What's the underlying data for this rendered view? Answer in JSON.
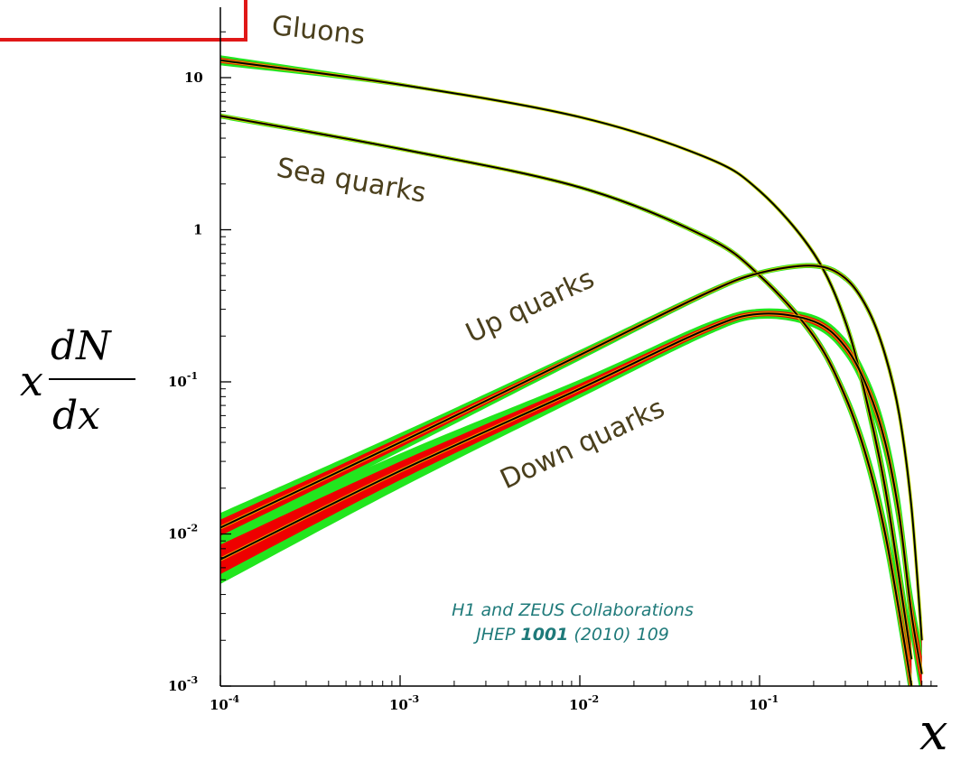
{
  "colors": {
    "outer_band": "#22e61e",
    "inner_band": "#ee0000",
    "central": "#000000",
    "highlight": "#f0e000",
    "label": "#4a3f1c",
    "citation": "#1f7a7a",
    "frame": "#e01818"
  },
  "axes": {
    "ylabel_x": "x",
    "ylabel_num": "dN",
    "ylabel_den": "dx",
    "xlabel": "x",
    "x_ticks": [
      {
        "value": 0.0001,
        "base": "10",
        "exp": "-4"
      },
      {
        "value": 0.001,
        "base": "10",
        "exp": "-3"
      },
      {
        "value": 0.01,
        "base": "10",
        "exp": "-2"
      },
      {
        "value": 0.1,
        "base": "10",
        "exp": "-1"
      }
    ],
    "y_ticks": [
      {
        "value": 0.001,
        "base": "10",
        "exp": "-3"
      },
      {
        "value": 0.01,
        "base": "10",
        "exp": "-2"
      },
      {
        "value": 0.1,
        "base": "10",
        "exp": "-1"
      },
      {
        "value": 1,
        "base": "1",
        "exp": ""
      },
      {
        "value": 10,
        "base": "10",
        "exp": ""
      }
    ]
  },
  "citation": {
    "line1": "H1 and ZEUS Collaborations",
    "line2_prefix": "JHEP ",
    "line2_bold": "1001",
    "line2_suffix": " (2010) 109"
  },
  "chart_data": {
    "type": "line",
    "x_scale": "log",
    "y_scale": "log",
    "xlim": [
      0.0001,
      1
    ],
    "ylim": [
      0.001,
      30
    ],
    "grid": false,
    "series": [
      {
        "name": "Gluons",
        "x": [
          0.0001,
          0.001,
          0.01,
          0.05,
          0.1,
          0.2,
          0.3,
          0.4,
          0.5,
          0.6,
          0.7
        ],
        "y": [
          13,
          9,
          5.5,
          3,
          1.8,
          0.7,
          0.25,
          0.07,
          0.02,
          0.005,
          0.0015
        ],
        "band_outer": [
          0.08,
          0.03,
          0.02,
          0.02,
          0.03,
          0.05,
          0.1,
          0.2,
          0.3,
          0.4,
          0.45
        ],
        "band_inner": [
          0.04,
          0.015,
          0.01,
          0.01,
          0.015,
          0.03,
          0.05,
          0.1,
          0.15,
          0.2,
          0.25
        ]
      },
      {
        "name": "Sea quarks",
        "x": [
          0.0001,
          0.001,
          0.01,
          0.05,
          0.1,
          0.2,
          0.3,
          0.4,
          0.5,
          0.6,
          0.7
        ],
        "y": [
          5.6,
          3.4,
          1.9,
          0.9,
          0.5,
          0.2,
          0.08,
          0.03,
          0.01,
          0.003,
          0.001
        ],
        "band_outer": [
          0.04,
          0.03,
          0.03,
          0.04,
          0.05,
          0.08,
          0.12,
          0.2,
          0.3,
          0.35,
          0.4
        ],
        "band_inner": [
          0.02,
          0.015,
          0.015,
          0.02,
          0.03,
          0.05,
          0.07,
          0.1,
          0.15,
          0.2,
          0.25
        ]
      },
      {
        "name": "Up quarks",
        "x": [
          0.0001,
          0.001,
          0.01,
          0.05,
          0.1,
          0.2,
          0.3,
          0.4,
          0.5,
          0.6,
          0.7,
          0.8
        ],
        "y": [
          0.011,
          0.04,
          0.15,
          0.38,
          0.52,
          0.58,
          0.48,
          0.3,
          0.15,
          0.06,
          0.015,
          0.002
        ],
        "band_outer": [
          0.25,
          0.15,
          0.08,
          0.05,
          0.04,
          0.04,
          0.05,
          0.07,
          0.1,
          0.15,
          0.25,
          0.4
        ],
        "band_inner": [
          0.13,
          0.08,
          0.04,
          0.03,
          0.02,
          0.02,
          0.03,
          0.04,
          0.06,
          0.08,
          0.13,
          0.2
        ]
      },
      {
        "name": "Down quarks",
        "x": [
          0.0001,
          0.001,
          0.01,
          0.05,
          0.1,
          0.2,
          0.3,
          0.4,
          0.5,
          0.6,
          0.7,
          0.8
        ],
        "y": [
          0.0068,
          0.026,
          0.09,
          0.22,
          0.28,
          0.25,
          0.17,
          0.09,
          0.04,
          0.013,
          0.003,
          0.0012
        ],
        "band_outer": [
          0.45,
          0.3,
          0.15,
          0.1,
          0.08,
          0.1,
          0.14,
          0.2,
          0.28,
          0.38,
          0.48,
          0.55
        ],
        "band_inner": [
          0.25,
          0.15,
          0.08,
          0.05,
          0.04,
          0.05,
          0.07,
          0.1,
          0.14,
          0.18,
          0.25,
          0.3
        ]
      }
    ]
  },
  "labels": {
    "gluons": "Gluons",
    "sea": "Sea quarks",
    "up": "Up quarks",
    "down": "Down quarks"
  }
}
